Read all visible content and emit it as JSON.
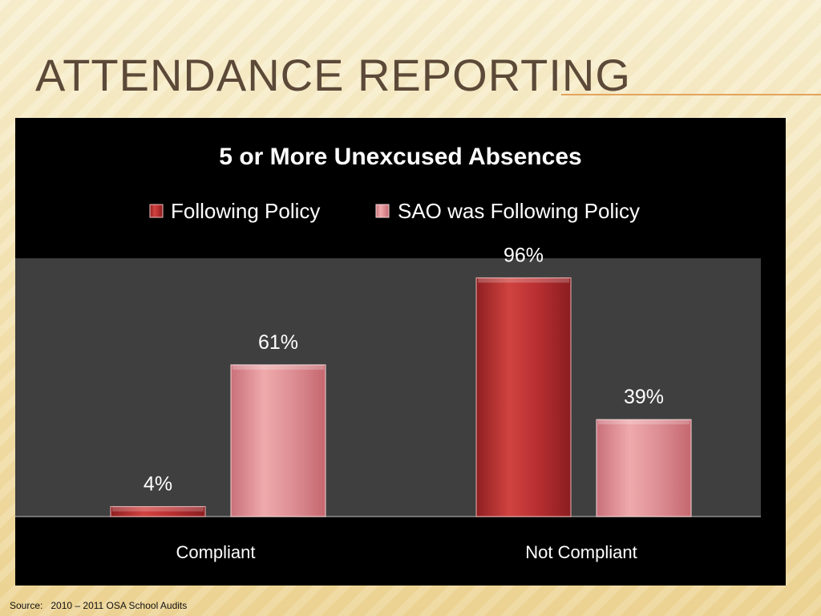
{
  "slide": {
    "title": "Attendance Reporting",
    "source": "Source:   2010 – 2011 OSA School Audits"
  },
  "colors": {
    "series_1": "#c63a36",
    "series_2": "#df8d8f",
    "plot_background": "#3f3f3f",
    "chart_background": "#000000"
  },
  "chart_data": {
    "type": "bar",
    "title": "5 or More Unexcused Absences",
    "categories": [
      "Compliant",
      "Not Compliant"
    ],
    "series": [
      {
        "name": "Following Policy",
        "values": [
          4,
          96
        ],
        "labels": [
          "4%",
          "96%"
        ]
      },
      {
        "name": "SAO was Following Policy",
        "values": [
          61,
          39
        ],
        "labels": [
          "61%",
          "39%"
        ]
      }
    ],
    "ylim": [
      0,
      100
    ],
    "grid": false,
    "legend_position": "top-center"
  }
}
